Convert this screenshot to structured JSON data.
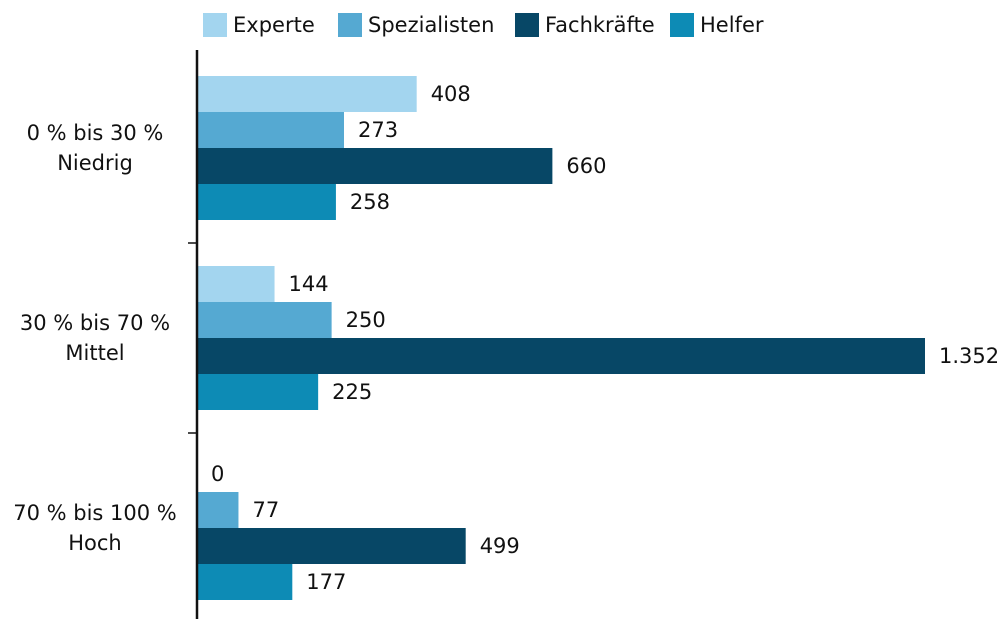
{
  "chart_data": {
    "type": "bar",
    "orientation": "horizontal",
    "categories": [
      [
        "0 % bis 30 %",
        "Niedrig"
      ],
      [
        "30 % bis 70 %",
        "Mittel"
      ],
      [
        "70 % bis 100 %",
        "Hoch"
      ]
    ],
    "series": [
      {
        "name": "Experte",
        "color": "#a3d5ef",
        "values": [
          408,
          144,
          0
        ]
      },
      {
        "name": "Spezialisten",
        "color": "#55a9d2",
        "values": [
          273,
          250,
          77
        ]
      },
      {
        "name": "Fachkräfte",
        "color": "#074766",
        "values": [
          660,
          1352,
          499
        ],
        "value_labels": [
          "660",
          "1.352",
          "499"
        ]
      },
      {
        "name": "Helfer",
        "color": "#0d8bb5",
        "values": [
          258,
          225,
          177
        ]
      }
    ]
  }
}
